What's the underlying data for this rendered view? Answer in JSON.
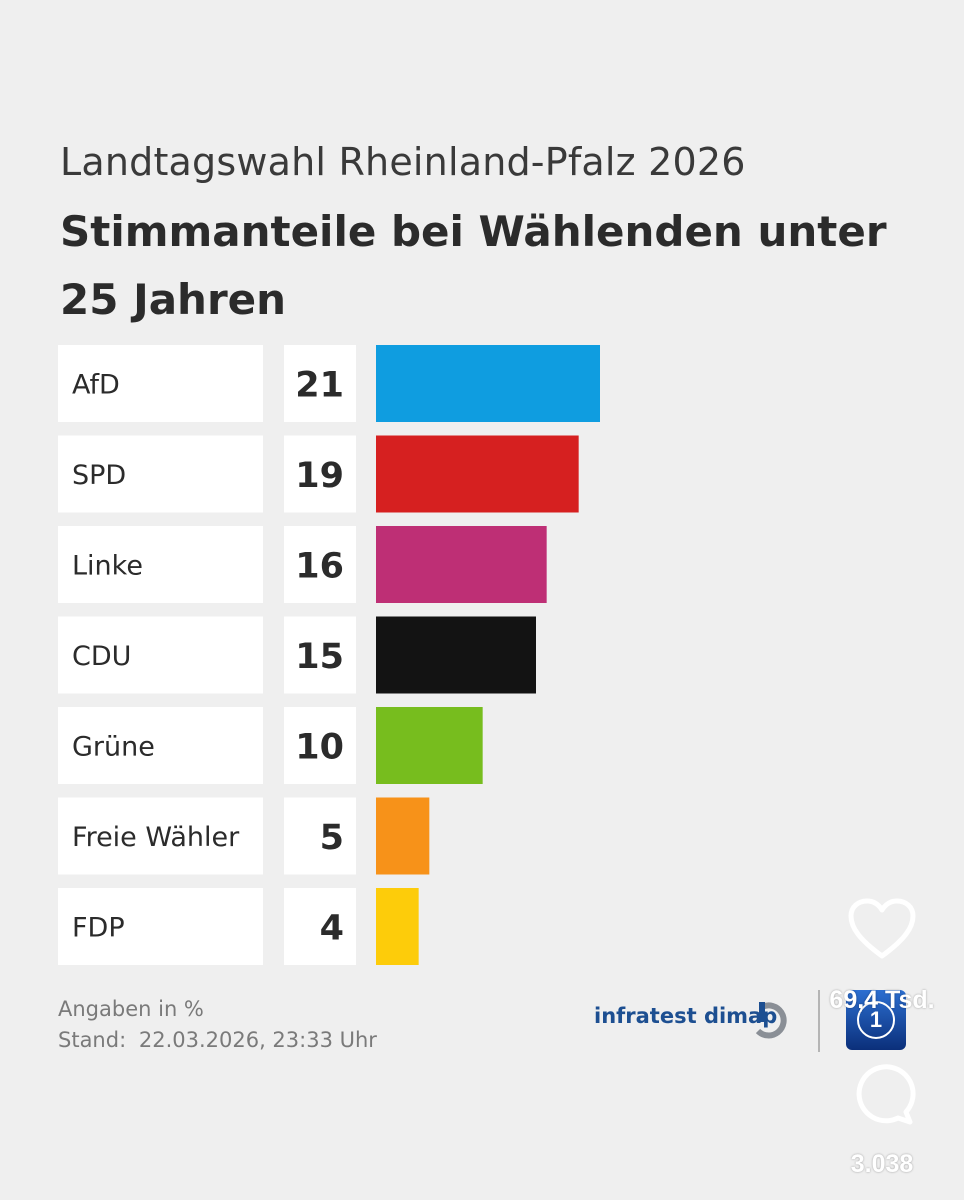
{
  "chart_data": {
    "type": "bar",
    "supertitle": "Landtagswahl Rheinland-Pfalz 2026",
    "title": "Stimmanteile bei Wählenden unter 25 Jahren",
    "categories": [
      "AfD",
      "SPD",
      "Linke",
      "CDU",
      "Grüne",
      "Freie Wähler",
      "FDP"
    ],
    "values": [
      21,
      19,
      16,
      15,
      10,
      5,
      4
    ],
    "value_labels": [
      "21",
      "19",
      "16",
      "15",
      "10",
      "5",
      "4"
    ],
    "colors": [
      "#0f9de0",
      "#d62020",
      "#be2f75",
      "#131313",
      "#77bd1e",
      "#f79219",
      "#fdcc0a"
    ],
    "orientation": "horizontal",
    "xlim": [
      0,
      21
    ],
    "unit_note": "Angaben in %",
    "grid": false,
    "legend": "none"
  },
  "footer": {
    "unit_note": "Angaben in %",
    "stand_label": "Stand:",
    "stand_value": "22.03.2026, 23:33 Uhr"
  },
  "branding": {
    "source": "infratest dimap",
    "source_icon": "infratest-dimap-logo-icon",
    "broadcaster_icon": "tagesschau-logo-icon",
    "broadcaster_mark": "1"
  },
  "social": {
    "like_icon": "heart-icon",
    "like_count": "69,4 Tsd.",
    "comment_icon": "comment-icon",
    "comment_count": "3.038"
  }
}
